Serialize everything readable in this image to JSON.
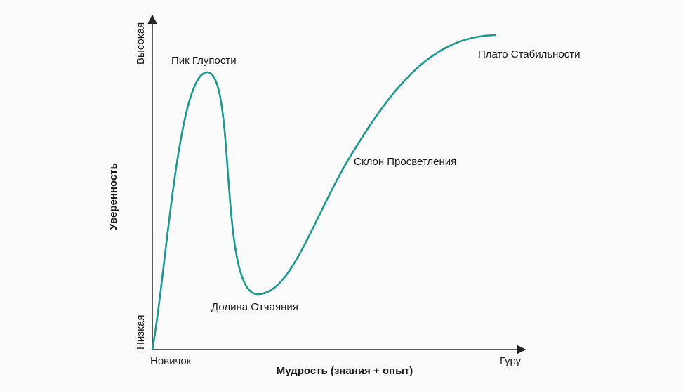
{
  "colors": {
    "curve": "#1a9a8e",
    "axis": "#222222",
    "text": "#1a1a1a",
    "background": "#fbfbfb"
  },
  "axes": {
    "x_title": "Мудрость (знания + опыт)",
    "x_start": "Новичок",
    "x_end": "Гуру",
    "y_title": "Уверенность",
    "y_low": "Низкая",
    "y_high": "Высокая"
  },
  "stages": {
    "peak": "Пик Глупости",
    "valley": "Долина Отчаяния",
    "slope": "Склон Просветления",
    "plateau": "Плато Стабильности"
  }
}
